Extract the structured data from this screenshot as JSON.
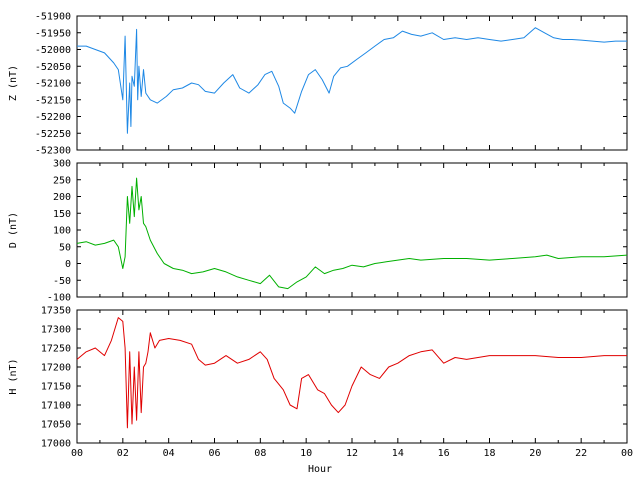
{
  "chart_data": [
    {
      "type": "line",
      "ylabel": "Z (nT)",
      "ylim": [
        -52300,
        -51900
      ],
      "yticks": [
        -51900,
        -51950,
        -52000,
        -52050,
        -52100,
        -52150,
        -52200,
        -52250,
        -52300
      ],
      "xlim": [
        0,
        24
      ],
      "xticks": [
        "00",
        "02",
        "04",
        "06",
        "08",
        "10",
        "12",
        "14",
        "16",
        "18",
        "20",
        "22",
        "00"
      ],
      "color": "#1e88e5",
      "series": [
        {
          "x": [
            0,
            0.4,
            0.8,
            1.2,
            1.6,
            1.8,
            2.0,
            2.1,
            2.2,
            2.3,
            2.35,
            2.4,
            2.5,
            2.6,
            2.65,
            2.7,
            2.8,
            2.9,
            3.0,
            3.2,
            3.5,
            3.9,
            4.2,
            4.6,
            5.0,
            5.3,
            5.6,
            6.0,
            6.4,
            6.8,
            7.1,
            7.5,
            7.9,
            8.2,
            8.5,
            8.8,
            9.0,
            9.3,
            9.5,
            9.8,
            10.1,
            10.4,
            10.7,
            11.0,
            11.2,
            11.5,
            11.8,
            12.2,
            12.6,
            13.0,
            13.4,
            13.8,
            14.2,
            14.6,
            15.0,
            15.5,
            16.0,
            16.5,
            17.0,
            17.5,
            18.0,
            18.5,
            19.0,
            19.5,
            20.0,
            20.4,
            20.8,
            21.2,
            21.6,
            22.0,
            22.5,
            23.0,
            23.5,
            24.0
          ],
          "values": [
            -51990,
            -51990,
            -52000,
            -52010,
            -52040,
            -52060,
            -52150,
            -51960,
            -52250,
            -52100,
            -52230,
            -52080,
            -52110,
            -51940,
            -52150,
            -52050,
            -52140,
            -52060,
            -52130,
            -52150,
            -52160,
            -52140,
            -52120,
            -52115,
            -52100,
            -52105,
            -52125,
            -52130,
            -52100,
            -52075,
            -52115,
            -52130,
            -52105,
            -52075,
            -52065,
            -52110,
            -52160,
            -52175,
            -52190,
            -52125,
            -52075,
            -52060,
            -52090,
            -52130,
            -52080,
            -52055,
            -52050,
            -52030,
            -52010,
            -51990,
            -51970,
            -51965,
            -51945,
            -51955,
            -51960,
            -51950,
            -51970,
            -51965,
            -51970,
            -51965,
            -51970,
            -51975,
            -51970,
            -51965,
            -51935,
            -51950,
            -51965,
            -51970,
            -51970,
            -51972,
            -51975,
            -51978,
            -51975,
            -51975
          ]
        }
      ]
    },
    {
      "type": "line",
      "ylabel": "D (nT)",
      "ylim": [
        -100,
        300
      ],
      "yticks": [
        300,
        250,
        200,
        150,
        100,
        50,
        0,
        -50,
        -100
      ],
      "xlim": [
        0,
        24
      ],
      "xticks": [
        "00",
        "02",
        "04",
        "06",
        "08",
        "10",
        "12",
        "14",
        "16",
        "18",
        "20",
        "22",
        "00"
      ],
      "color": "#00b000",
      "series": [
        {
          "x": [
            0,
            0.4,
            0.8,
            1.2,
            1.6,
            1.8,
            2.0,
            2.1,
            2.2,
            2.3,
            2.4,
            2.5,
            2.6,
            2.7,
            2.8,
            2.9,
            3.0,
            3.2,
            3.5,
            3.8,
            4.2,
            4.6,
            5.0,
            5.5,
            6.0,
            6.5,
            7.0,
            7.5,
            8.0,
            8.4,
            8.8,
            9.2,
            9.6,
            10.0,
            10.4,
            10.8,
            11.2,
            11.6,
            12.0,
            12.5,
            13.0,
            13.5,
            14.0,
            14.5,
            15.0,
            16.0,
            17.0,
            18.0,
            19.0,
            20.0,
            20.5,
            21.0,
            22.0,
            23.0,
            24.0
          ],
          "values": [
            60,
            65,
            55,
            60,
            70,
            50,
            -15,
            20,
            200,
            120,
            230,
            140,
            255,
            160,
            200,
            120,
            110,
            70,
            30,
            0,
            -15,
            -20,
            -30,
            -25,
            -15,
            -25,
            -40,
            -50,
            -60,
            -35,
            -70,
            -75,
            -55,
            -40,
            -10,
            -30,
            -20,
            -15,
            -5,
            -10,
            0,
            5,
            10,
            15,
            10,
            15,
            15,
            10,
            15,
            20,
            25,
            15,
            20,
            20,
            25
          ]
        }
      ]
    },
    {
      "type": "line",
      "ylabel": "H (nT)",
      "ylim": [
        17000,
        17350
      ],
      "yticks": [
        17350,
        17300,
        17250,
        17200,
        17150,
        17100,
        17050,
        17000
      ],
      "xlim": [
        0,
        24
      ],
      "xlabel": "Hour",
      "xticks": [
        "00",
        "02",
        "04",
        "06",
        "08",
        "10",
        "12",
        "14",
        "16",
        "18",
        "20",
        "22",
        "00"
      ],
      "color": "#e00000",
      "series": [
        {
          "x": [
            0,
            0.4,
            0.8,
            1.2,
            1.5,
            1.8,
            2.0,
            2.1,
            2.2,
            2.3,
            2.4,
            2.5,
            2.6,
            2.7,
            2.8,
            2.9,
            3.0,
            3.1,
            3.2,
            3.4,
            3.6,
            4.0,
            4.5,
            5.0,
            5.3,
            5.6,
            6.0,
            6.5,
            7.0,
            7.5,
            8.0,
            8.3,
            8.6,
            9.0,
            9.3,
            9.6,
            9.8,
            10.1,
            10.5,
            10.8,
            11.1,
            11.4,
            11.7,
            12.0,
            12.4,
            12.8,
            13.2,
            13.6,
            14.0,
            14.5,
            15.0,
            15.5,
            16.0,
            16.5,
            17.0,
            17.5,
            18.0,
            18.5,
            19.0,
            20.0,
            21.0,
            22.0,
            23.0,
            24.0
          ],
          "values": [
            17220,
            17240,
            17250,
            17230,
            17270,
            17330,
            17320,
            17250,
            17040,
            17240,
            17050,
            17200,
            17060,
            17240,
            17080,
            17200,
            17210,
            17240,
            17290,
            17250,
            17270,
            17275,
            17270,
            17260,
            17220,
            17205,
            17210,
            17230,
            17210,
            17220,
            17240,
            17220,
            17170,
            17140,
            17100,
            17090,
            17170,
            17180,
            17140,
            17130,
            17100,
            17080,
            17100,
            17150,
            17200,
            17180,
            17170,
            17200,
            17210,
            17230,
            17240,
            17245,
            17210,
            17225,
            17220,
            17225,
            17230,
            17230,
            17230,
            17230,
            17225,
            17225,
            17230,
            17230
          ]
        }
      ]
    }
  ]
}
